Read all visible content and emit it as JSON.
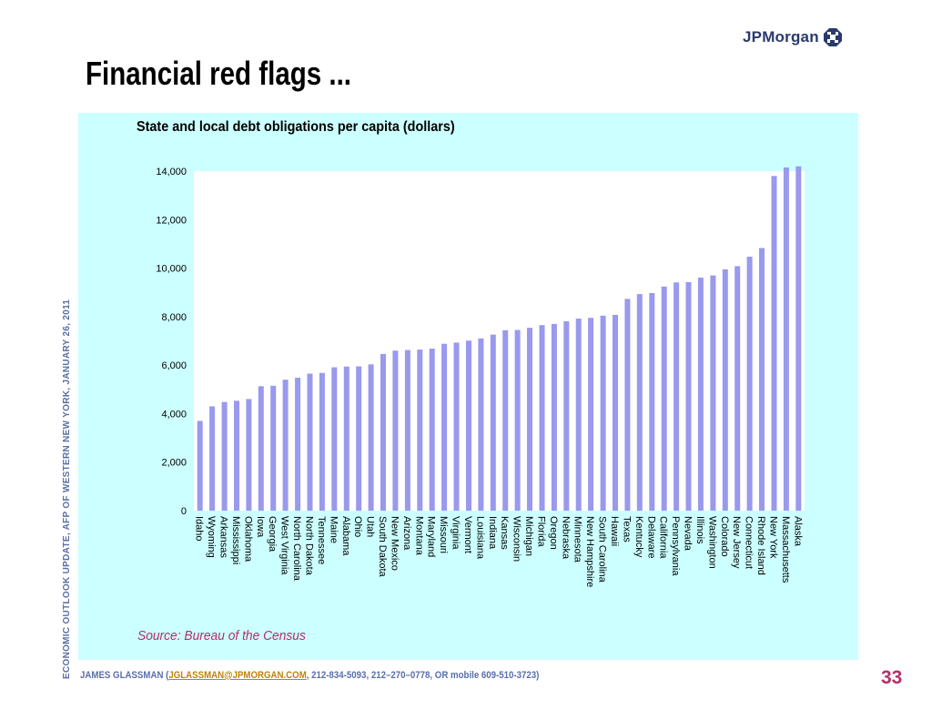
{
  "slide": {
    "title": "Financial red flags ...",
    "logo_text": "JPMorgan",
    "side_text": "ECONOMIC OUTLOOK UPDATE, AFP OF WESTERN NEW YORK, JANUARY 26, 2011",
    "source": "Source: Bureau of the Census",
    "footer_prefix": "JAMES GLASSMAN (",
    "footer_email": "JGLASSMAN@JPMORGAN.COM",
    "footer_suffix": ", 212-834-5093, 212–270–0778, OR mobile 609-510-3723)",
    "page_number": "33"
  },
  "colors": {
    "panel_bg": "#ccffff",
    "bar": "#9999ee",
    "title_accent": "#b3306b",
    "footer": "#5a6fa8"
  },
  "chart_data": {
    "type": "bar",
    "title": "State and local debt obligations per capita (dollars)",
    "xlabel": "",
    "ylabel": "",
    "ylim": [
      0,
      14000
    ],
    "ytick_labels": [
      "0",
      "2,000",
      "4,000",
      "6,000",
      "8,000",
      "10,000",
      "12,000",
      "14,000"
    ],
    "grid": false,
    "legend": "none",
    "categories": [
      "Idaho",
      "Wyoming",
      "Arkansas",
      "Mississippi",
      "Oklahoma",
      "Iowa",
      "Georgia",
      "West Virginia",
      "North Carolina",
      "North Dakota",
      "Tennessee",
      "Maine",
      "Alabama",
      "Ohio",
      "Utah",
      "South Dakota",
      "New Mexico",
      "Arizona",
      "Montana",
      "Maryland",
      "Missouri",
      "Virginia",
      "Vermont",
      "Louisiana",
      "Indiana",
      "Kansas",
      "Wisconsin",
      "Michigan",
      "Florida",
      "Oregon",
      "Nebraska",
      "Minnesota",
      "New Hampshire",
      "South Carolina",
      "Hawaii",
      "Texas",
      "Kentucky",
      "Delaware",
      "California",
      "Pennsylvania",
      "Nevada",
      "Illinois",
      "Washington",
      "Colorado",
      "New Jersey",
      "Connecticut",
      "Rhode Island",
      "New York",
      "Massachusetts",
      "Alaska"
    ],
    "values": [
      3700,
      4300,
      4480,
      4530,
      4600,
      5130,
      5150,
      5400,
      5480,
      5650,
      5680,
      5910,
      5940,
      5950,
      6030,
      6460,
      6600,
      6620,
      6640,
      6680,
      6880,
      6930,
      7010,
      7100,
      7260,
      7440,
      7450,
      7540,
      7650,
      7700,
      7810,
      7920,
      7950,
      8040,
      8070,
      8730,
      8930,
      8970,
      9240,
      9410,
      9420,
      9610,
      9700,
      9950,
      10080,
      10470,
      10830,
      13800,
      14150,
      14200
    ]
  }
}
